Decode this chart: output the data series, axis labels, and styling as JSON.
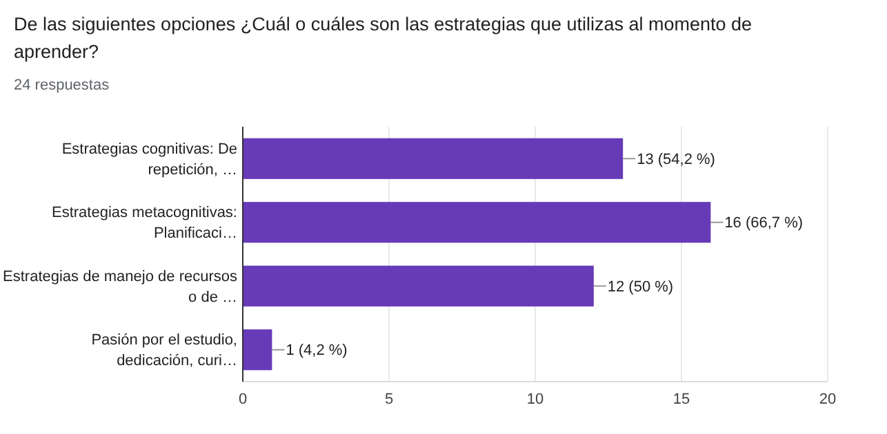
{
  "chart_data": {
    "type": "bar",
    "orientation": "horizontal",
    "title": "De las siguientes opciones ¿Cuál o cuáles son las estrategias que utilizas al momento de aprender?",
    "subtitle": "24 respuestas",
    "categories": [
      "Estrategias cognitivas: De repetición, …",
      "Estrategias metacognitivas: Planificaci…",
      "Estrategias de manejo de recursos o de …",
      "Pasión por el estudio, dedicación, curi…"
    ],
    "values": [
      13,
      16,
      12,
      1
    ],
    "color": "#673ab7",
    "value_labels": [
      "13 (54,2 %)",
      "16 (66,7 %)",
      "12 (50 %)",
      "1 (4,2 %)"
    ],
    "xlim": [
      0,
      20
    ],
    "xticks": [
      0,
      5,
      10,
      15,
      20
    ],
    "grid": "x"
  }
}
